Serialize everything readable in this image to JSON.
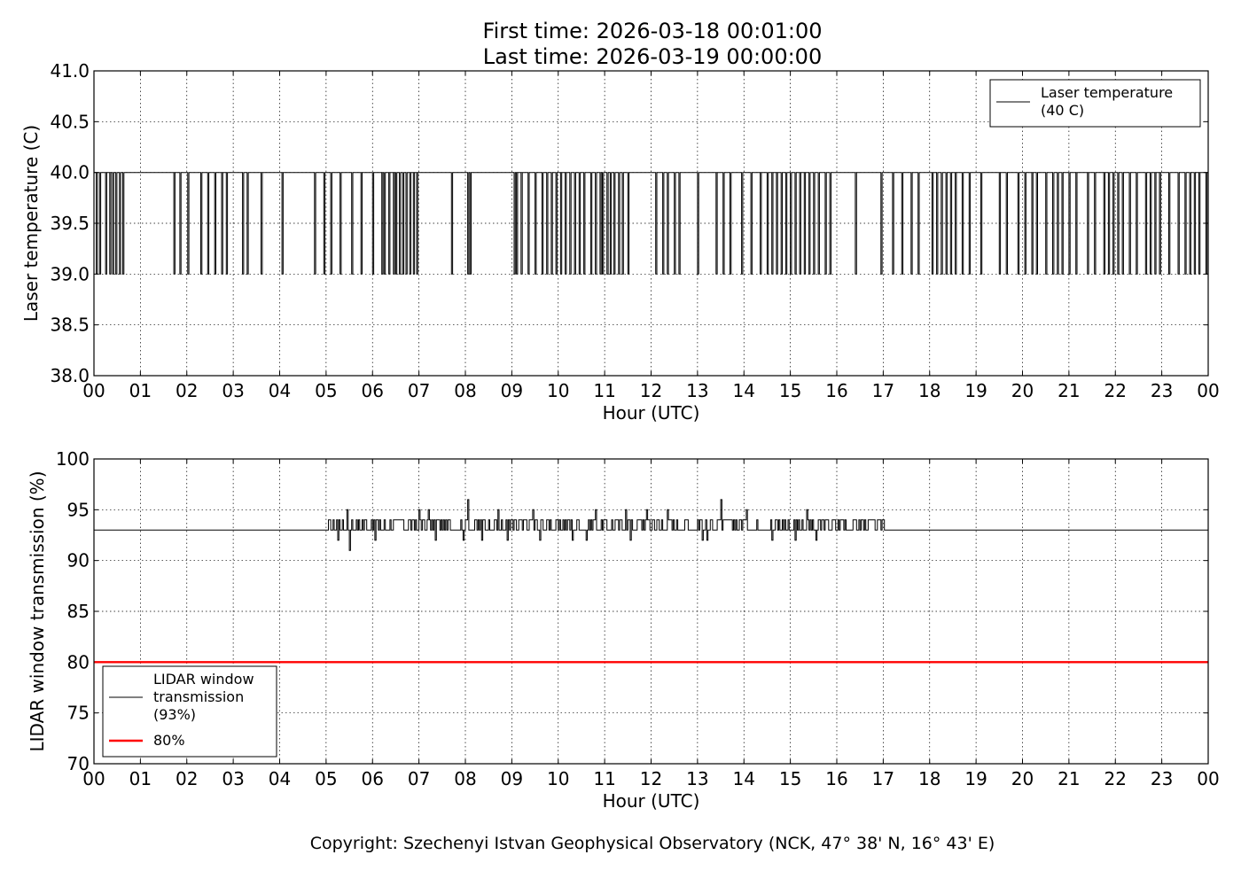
{
  "title_lines": [
    "First time: 2026-03-18 00:01:00",
    "Last time: 2026-03-19 00:00:00"
  ],
  "copyright": "Copyright: Szechenyi Istvan Geophysical Observatory (NCK, 47° 38' N, 16° 43' E)",
  "colors": {
    "signal": "#000000",
    "threshold": "#ff0000",
    "grid": "#000000"
  },
  "chart_data": [
    {
      "type": "line",
      "xlabel": "Hour (UTC)",
      "ylabel": "Laser temperature (C)",
      "xlim": [
        0,
        24
      ],
      "ylim": [
        38.0,
        41.0
      ],
      "grid": true,
      "legend_position": "top-right",
      "x_ticks": [
        "00",
        "01",
        "02",
        "03",
        "04",
        "05",
        "06",
        "07",
        "08",
        "09",
        "10",
        "11",
        "12",
        "13",
        "14",
        "15",
        "16",
        "17",
        "18",
        "19",
        "20",
        "21",
        "22",
        "23",
        "00"
      ],
      "y_ticks": [
        "38.0",
        "38.5",
        "39.0",
        "39.5",
        "40.0",
        "40.5",
        "41.0"
      ],
      "series": [
        {
          "name": "Laser temperature\n(40 C)",
          "baseline": 40.0,
          "dip_value": 39.0,
          "dips_hours": [
            0.05,
            0.12,
            0.25,
            0.34,
            0.4,
            0.47,
            0.55,
            0.62,
            1.72,
            1.85,
            2.02,
            2.3,
            2.45,
            2.6,
            2.75,
            2.85,
            3.2,
            3.3,
            3.6,
            4.05,
            4.75,
            4.95,
            5.1,
            5.3,
            5.55,
            5.75,
            6.0,
            6.2,
            6.25,
            6.35,
            6.45,
            6.5,
            6.58,
            6.65,
            6.72,
            6.8,
            6.88,
            6.95,
            7.7,
            8.05,
            8.1,
            9.05,
            9.1,
            9.2,
            9.35,
            9.5,
            9.65,
            9.75,
            9.85,
            9.95,
            10.05,
            10.15,
            10.25,
            10.35,
            10.45,
            10.55,
            10.7,
            10.8,
            10.9,
            10.95,
            11.05,
            11.12,
            11.2,
            11.3,
            11.38,
            11.5,
            12.1,
            12.25,
            12.35,
            12.5,
            12.6,
            13.0,
            13.4,
            13.55,
            13.7,
            13.95,
            14.15,
            14.35,
            14.5,
            14.6,
            14.7,
            14.8,
            14.9,
            15.0,
            15.1,
            15.2,
            15.3,
            15.4,
            15.5,
            15.6,
            15.75,
            15.85,
            16.4,
            16.95,
            17.2,
            17.4,
            17.6,
            17.75,
            18.05,
            18.15,
            18.25,
            18.35,
            18.45,
            18.55,
            18.7,
            18.85,
            19.1,
            19.5,
            19.65,
            19.9,
            20.05,
            20.2,
            20.3,
            20.5,
            20.65,
            20.75,
            20.85,
            21.0,
            21.15,
            21.4,
            21.55,
            21.75,
            21.85,
            21.95,
            22.05,
            22.15,
            22.3,
            22.45,
            22.65,
            22.75,
            22.85,
            22.95,
            23.15,
            23.35,
            23.5,
            23.6,
            23.7,
            23.8,
            23.95
          ]
        }
      ]
    },
    {
      "type": "line",
      "xlabel": "Hour (UTC)",
      "ylabel": "LIDAR window transmission (%)",
      "xlim": [
        0,
        24
      ],
      "ylim": [
        70,
        100
      ],
      "grid": true,
      "legend_position": "bottom-left",
      "x_ticks": [
        "00",
        "01",
        "02",
        "03",
        "04",
        "05",
        "06",
        "07",
        "08",
        "09",
        "10",
        "11",
        "12",
        "13",
        "14",
        "15",
        "16",
        "17",
        "18",
        "19",
        "20",
        "21",
        "22",
        "23",
        "00"
      ],
      "y_ticks": [
        "70",
        "75",
        "80",
        "85",
        "90",
        "95",
        "100"
      ],
      "series": [
        {
          "name": "LIDAR window\ntransmission\n(93%)",
          "baseline": 93,
          "noisy_interval_hours": [
            5.05,
            17.05
          ],
          "noisy_values": [
            93,
            94
          ],
          "peaks": [
            [
              5.45,
              95
            ],
            [
              6.15,
              94
            ],
            [
              7.0,
              95
            ],
            [
              7.2,
              95
            ],
            [
              8.05,
              96
            ],
            [
              8.7,
              95
            ],
            [
              9.45,
              95
            ],
            [
              10.8,
              95
            ],
            [
              11.45,
              95
            ],
            [
              11.9,
              95
            ],
            [
              12.35,
              95
            ],
            [
              13.1,
              95
            ],
            [
              13.5,
              96
            ],
            [
              14.05,
              95
            ],
            [
              15.35,
              95
            ]
          ],
          "troughs": [
            [
              5.25,
              92
            ],
            [
              5.5,
              91
            ],
            [
              6.05,
              92
            ],
            [
              7.35,
              92
            ],
            [
              7.95,
              92
            ],
            [
              8.35,
              92
            ],
            [
              8.9,
              92
            ],
            [
              9.6,
              92
            ],
            [
              10.3,
              92
            ],
            [
              10.6,
              92
            ],
            [
              11.55,
              92
            ],
            [
              13.1,
              92
            ],
            [
              13.2,
              92
            ],
            [
              14.6,
              92
            ],
            [
              15.1,
              92
            ],
            [
              15.55,
              92
            ]
          ]
        },
        {
          "name": "80%",
          "constant": 80,
          "color": "#ff0000"
        }
      ]
    }
  ]
}
